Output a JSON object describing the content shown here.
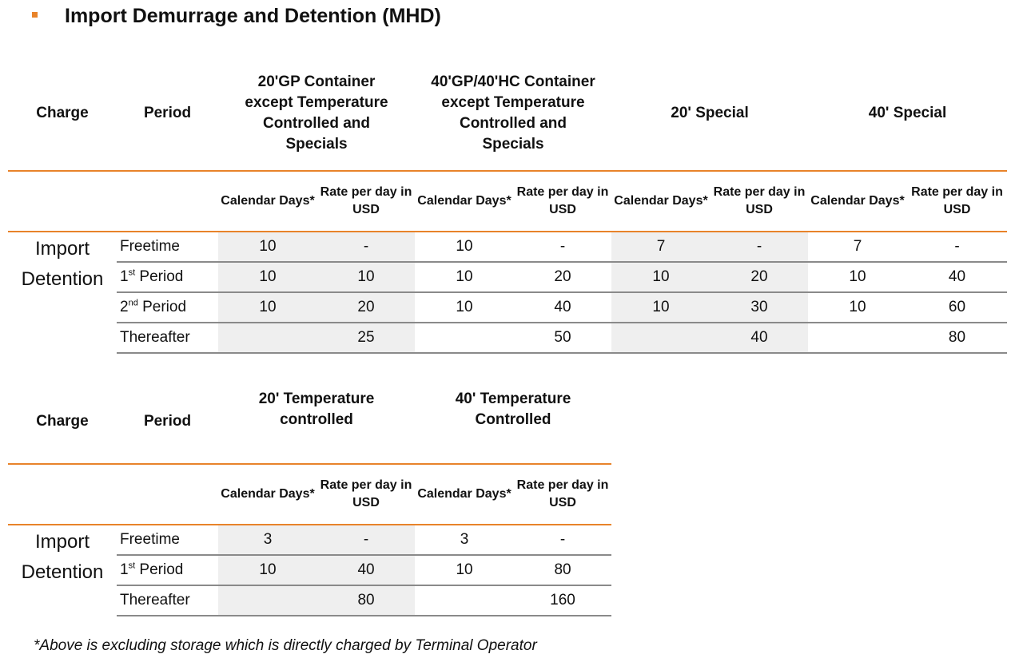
{
  "title": "Import Demurrage and Detention (MHD)",
  "table1": {
    "headers": {
      "charge": "Charge",
      "period": "Period",
      "groups": [
        "20'GP Container except Temperature Controlled and Specials",
        "40'GP/40'HC Container except Temperature Controlled and Specials",
        "20' Special",
        "40' Special"
      ]
    },
    "sub": {
      "days": "Calendar Days*",
      "rate": "Rate per day in USD"
    },
    "charge_line1": "Import",
    "charge_line2": "Detention",
    "rows": [
      {
        "base": "Freetime",
        "sup": "",
        "rest": "",
        "cells": [
          "10",
          "-",
          "10",
          "-",
          "7",
          "-",
          "7",
          "-"
        ]
      },
      {
        "base": "1",
        "sup": "st",
        "rest": " Period",
        "cells": [
          "10",
          "10",
          "10",
          "20",
          "10",
          "20",
          "10",
          "40"
        ]
      },
      {
        "base": "2",
        "sup": "nd",
        "rest": " Period",
        "cells": [
          "10",
          "20",
          "10",
          "40",
          "10",
          "30",
          "10",
          "60"
        ]
      },
      {
        "base": "Thereafter",
        "sup": "",
        "rest": "",
        "cells": [
          "",
          "25",
          "",
          "50",
          "",
          "40",
          "",
          "80"
        ]
      }
    ]
  },
  "table2": {
    "headers": {
      "charge": "Charge",
      "period": "Period",
      "groups": [
        "20' Temperature controlled",
        "40' Temperature Controlled"
      ]
    },
    "sub": {
      "days": "Calendar Days*",
      "rate": "Rate per day in USD"
    },
    "charge_line1": "Import",
    "charge_line2": "Detention",
    "rows": [
      {
        "base": "Freetime",
        "sup": "",
        "rest": "",
        "cells": [
          "3",
          "-",
          "3",
          "-"
        ]
      },
      {
        "base": "1",
        "sup": "st",
        "rest": " Period",
        "cells": [
          "10",
          "40",
          "10",
          "80"
        ]
      },
      {
        "base": "Thereafter",
        "sup": "",
        "rest": "",
        "cells": [
          "",
          "80",
          "",
          "160"
        ]
      }
    ]
  },
  "footnote": "*Above is excluding storage which is directly charged by Terminal Operator",
  "colors": {
    "accent": "#e8832a",
    "rule": "#8a8a8a",
    "shade": "#efefef"
  }
}
